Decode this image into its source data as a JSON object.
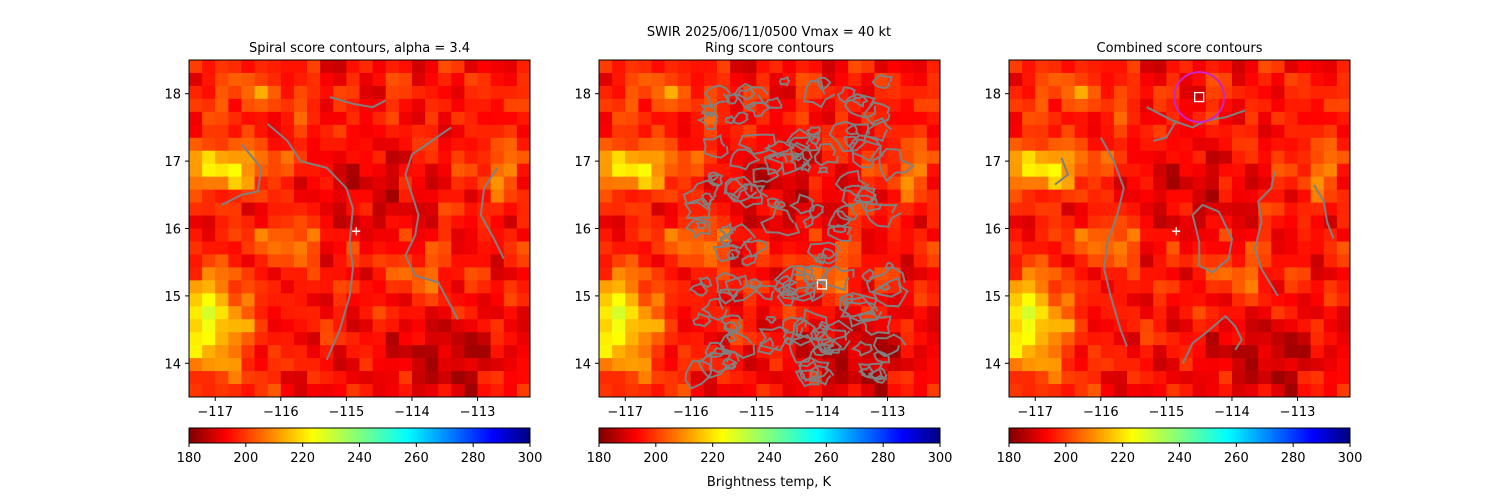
{
  "suptitle": "SWIR  2025/06/11/0500    Vmax = 40 kt",
  "colorbar_label": "Brightness temp, K",
  "colormap": "jet",
  "colors": {
    "contour": "#808080",
    "marker": "#ffffff",
    "circle": "#cc22cc"
  },
  "chart_data": [
    {
      "type": "heatmap",
      "title": "Spiral score contours, alpha =  3.4",
      "xlim": [
        -117.4,
        -112.2
      ],
      "ylim": [
        13.5,
        18.5
      ],
      "xticks": [
        "-117",
        "-116",
        "-115",
        "-114",
        "-113"
      ],
      "yticks": [
        "14",
        "15",
        "16",
        "17",
        "18"
      ],
      "colorbar": {
        "min": 180,
        "max": 300,
        "ticks": [
          "180",
          "200",
          "220",
          "240",
          "260",
          "280",
          "300"
        ],
        "label": ""
      },
      "markers": [
        {
          "type": "plus",
          "lon": -114.85,
          "lat": 15.96
        }
      ],
      "contours": [
        [
          [
            -115.25,
            17.95
          ],
          [
            -114.9,
            17.85
          ],
          [
            -114.6,
            17.8
          ],
          [
            -114.4,
            17.9
          ]
        ],
        [
          [
            -116.9,
            16.35
          ],
          [
            -116.6,
            16.5
          ],
          [
            -116.35,
            16.55
          ],
          [
            -116.3,
            16.9
          ],
          [
            -116.6,
            17.25
          ]
        ],
        [
          [
            -116.2,
            17.55
          ],
          [
            -115.9,
            17.3
          ],
          [
            -115.7,
            17.0
          ],
          [
            -115.3,
            16.9
          ],
          [
            -115.0,
            16.6
          ],
          [
            -114.9,
            16.3
          ],
          [
            -114.95,
            15.8
          ],
          [
            -114.9,
            15.4
          ],
          [
            -114.95,
            15.0
          ],
          [
            -115.1,
            14.5
          ],
          [
            -115.3,
            14.05
          ]
        ],
        [
          [
            -113.4,
            17.5
          ],
          [
            -113.7,
            17.3
          ],
          [
            -114.0,
            17.1
          ],
          [
            -114.1,
            16.8
          ],
          [
            -114.0,
            16.5
          ],
          [
            -113.9,
            16.2
          ],
          [
            -113.95,
            15.9
          ],
          [
            -114.1,
            15.6
          ],
          [
            -113.95,
            15.3
          ],
          [
            -113.6,
            15.2
          ],
          [
            -113.3,
            14.65
          ]
        ],
        [
          [
            -112.7,
            16.9
          ],
          [
            -112.9,
            16.6
          ],
          [
            -112.95,
            16.2
          ],
          [
            -112.75,
            15.85
          ],
          [
            -112.6,
            15.55
          ]
        ]
      ]
    },
    {
      "type": "heatmap",
      "title": "Ring score contours",
      "xlim": [
        -117.4,
        -112.2
      ],
      "ylim": [
        13.5,
        18.5
      ],
      "xticks": [
        "-117",
        "-116",
        "-115",
        "-114",
        "-113"
      ],
      "yticks": [
        "14",
        "15",
        "16",
        "17",
        "18"
      ],
      "colorbar": {
        "min": 180,
        "max": 300,
        "ticks": [
          "180",
          "200",
          "220",
          "240",
          "260",
          "280",
          "300"
        ],
        "label": "Brightness temp, K"
      },
      "markers": [
        {
          "type": "square",
          "lon": -114.0,
          "lat": 15.17
        }
      ],
      "ring_region": {
        "lon": [
          -115.9,
          -112.9
        ],
        "lat": [
          13.75,
          18.2
        ]
      }
    },
    {
      "type": "heatmap",
      "title": "Combined score contours",
      "xlim": [
        -117.4,
        -112.2
      ],
      "ylim": [
        13.5,
        18.5
      ],
      "xticks": [
        "-117",
        "-116",
        "-115",
        "-114",
        "-113"
      ],
      "yticks": [
        "14",
        "15",
        "16",
        "17",
        "18"
      ],
      "colorbar": {
        "min": 180,
        "max": 300,
        "ticks": [
          "180",
          "200",
          "220",
          "240",
          "260",
          "280",
          "300"
        ],
        "label": ""
      },
      "markers": [
        {
          "type": "plus",
          "lon": -114.85,
          "lat": 15.96
        },
        {
          "type": "square",
          "lon": -114.5,
          "lat": 17.95
        },
        {
          "type": "circle",
          "lon": -114.5,
          "lat": 17.95,
          "r_deg": 0.37
        }
      ],
      "contours": [
        [
          [
            -115.3,
            17.8
          ],
          [
            -114.9,
            17.6
          ],
          [
            -114.6,
            17.5
          ],
          [
            -114.4,
            17.6
          ],
          [
            -114.1,
            17.65
          ],
          [
            -113.8,
            17.75
          ]
        ],
        [
          [
            -114.85,
            17.6
          ],
          [
            -115.0,
            17.35
          ],
          [
            -115.2,
            17.3
          ]
        ],
        [
          [
            -116.6,
            17.05
          ],
          [
            -116.5,
            16.8
          ],
          [
            -116.7,
            16.65
          ]
        ],
        [
          [
            -116.0,
            17.35
          ],
          [
            -115.8,
            17.0
          ],
          [
            -115.65,
            16.6
          ],
          [
            -115.75,
            16.2
          ],
          [
            -115.9,
            15.8
          ],
          [
            -115.95,
            15.4
          ],
          [
            -115.85,
            15.0
          ],
          [
            -115.7,
            14.5
          ],
          [
            -115.6,
            14.25
          ]
        ],
        [
          [
            -114.6,
            16.2
          ],
          [
            -114.5,
            15.8
          ],
          [
            -114.5,
            15.45
          ],
          [
            -114.3,
            15.35
          ],
          [
            -114.05,
            15.55
          ],
          [
            -114.0,
            15.85
          ],
          [
            -114.2,
            16.25
          ],
          [
            -114.45,
            16.35
          ],
          [
            -114.6,
            16.2
          ]
        ],
        [
          [
            -113.35,
            16.85
          ],
          [
            -113.4,
            16.6
          ],
          [
            -113.6,
            16.4
          ],
          [
            -113.55,
            16.1
          ],
          [
            -113.65,
            15.7
          ],
          [
            -113.55,
            15.4
          ],
          [
            -113.3,
            15.0
          ]
        ],
        [
          [
            -112.75,
            16.65
          ],
          [
            -112.6,
            16.4
          ],
          [
            -112.55,
            16.1
          ],
          [
            -112.45,
            15.85
          ]
        ],
        [
          [
            -114.75,
            14.0
          ],
          [
            -114.6,
            14.3
          ],
          [
            -114.4,
            14.45
          ],
          [
            -114.1,
            14.7
          ],
          [
            -113.95,
            14.55
          ],
          [
            -113.85,
            14.35
          ],
          [
            -113.95,
            14.2
          ]
        ]
      ]
    }
  ]
}
